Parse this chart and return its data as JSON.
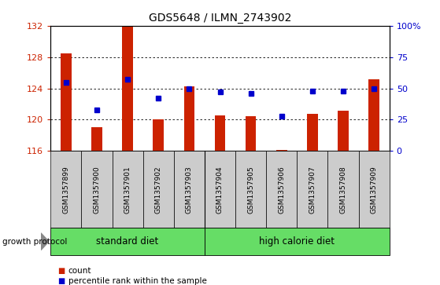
{
  "title": "GDS5648 / ILMN_2743902",
  "samples": [
    "GSM1357899",
    "GSM1357900",
    "GSM1357901",
    "GSM1357902",
    "GSM1357903",
    "GSM1357904",
    "GSM1357905",
    "GSM1357906",
    "GSM1357907",
    "GSM1357908",
    "GSM1357909"
  ],
  "counts": [
    128.5,
    119.0,
    132.0,
    120.0,
    124.3,
    120.5,
    120.4,
    116.1,
    120.7,
    121.1,
    125.2
  ],
  "percentiles": [
    55,
    33,
    57,
    42,
    50,
    47,
    46,
    28,
    48,
    48,
    50
  ],
  "ylim_left": [
    116,
    132
  ],
  "ylim_right": [
    0,
    100
  ],
  "yticks_left": [
    116,
    120,
    124,
    128,
    132
  ],
  "yticks_right": [
    0,
    25,
    50,
    75,
    100
  ],
  "bar_color": "#cc2200",
  "dot_color": "#0000cc",
  "grid_color": "#000000",
  "group1_label": "standard diet",
  "group2_label": "high calorie diet",
  "group_color": "#66dd66",
  "sample_bg_color": "#cccccc",
  "protocol_label": "growth protocol",
  "legend_count_label": "count",
  "legend_percentile_label": "percentile rank within the sample",
  "bar_width": 0.35,
  "base_value": 116,
  "fig_width": 5.59,
  "fig_height": 3.63
}
